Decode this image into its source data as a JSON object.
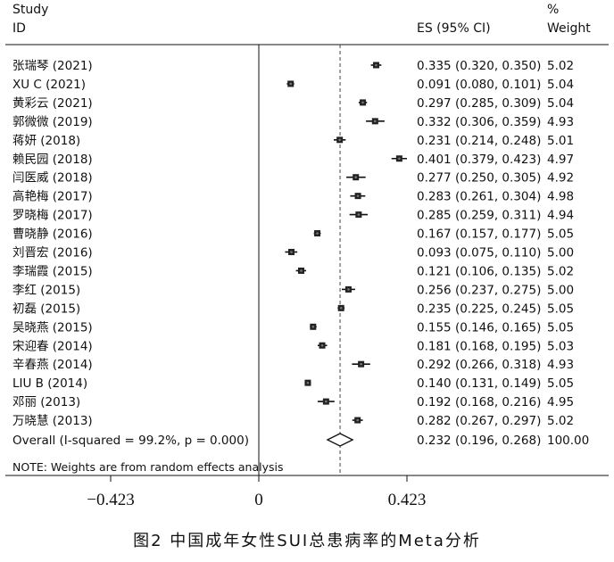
{
  "caption": "图2  中国成年女性SUI总患病率的Meta分析",
  "chart_data": {
    "type": "forest",
    "headers": {
      "study_top": "Study",
      "study_bottom": "ID",
      "es": "ES (95% CI)",
      "weight_top": "%",
      "weight_bottom": "Weight"
    },
    "studies": [
      {
        "label": "张瑞琴 (2021)",
        "es": 0.335,
        "lo": 0.32,
        "hi": 0.35,
        "ci_text": "0.335 (0.320, 0.350)",
        "weight": "5.02"
      },
      {
        "label": "XU C (2021)",
        "es": 0.091,
        "lo": 0.08,
        "hi": 0.101,
        "ci_text": "0.091 (0.080, 0.101)",
        "weight": "5.04"
      },
      {
        "label": "黄彩云 (2021)",
        "es": 0.297,
        "lo": 0.285,
        "hi": 0.309,
        "ci_text": "0.297 (0.285, 0.309)",
        "weight": "5.04"
      },
      {
        "label": "郭微微 (2019)",
        "es": 0.332,
        "lo": 0.306,
        "hi": 0.359,
        "ci_text": "0.332 (0.306, 0.359)",
        "weight": "4.93"
      },
      {
        "label": "蒋妍 (2018)",
        "es": 0.231,
        "lo": 0.214,
        "hi": 0.248,
        "ci_text": "0.231 (0.214, 0.248)",
        "weight": "5.01"
      },
      {
        "label": "赖民园 (2018)",
        "es": 0.401,
        "lo": 0.379,
        "hi": 0.423,
        "ci_text": "0.401 (0.379, 0.423)",
        "weight": "4.97"
      },
      {
        "label": "闫医威 (2018)",
        "es": 0.277,
        "lo": 0.25,
        "hi": 0.305,
        "ci_text": "0.277 (0.250, 0.305)",
        "weight": "4.92"
      },
      {
        "label": "高艳梅 (2017)",
        "es": 0.283,
        "lo": 0.261,
        "hi": 0.304,
        "ci_text": "0.283 (0.261, 0.304)",
        "weight": "4.98"
      },
      {
        "label": "罗晓梅 (2017)",
        "es": 0.285,
        "lo": 0.259,
        "hi": 0.311,
        "ci_text": "0.285 (0.259, 0.311)",
        "weight": "4.94"
      },
      {
        "label": "曹晓静 (2016)",
        "es": 0.167,
        "lo": 0.157,
        "hi": 0.177,
        "ci_text": "0.167 (0.157, 0.177)",
        "weight": "5.05"
      },
      {
        "label": "刘晋宏 (2016)",
        "es": 0.093,
        "lo": 0.075,
        "hi": 0.11,
        "ci_text": "0.093 (0.075, 0.110)",
        "weight": "5.00"
      },
      {
        "label": "李瑞霞 (2015)",
        "es": 0.121,
        "lo": 0.106,
        "hi": 0.135,
        "ci_text": "0.121 (0.106, 0.135)",
        "weight": "5.02"
      },
      {
        "label": "李红 (2015)",
        "es": 0.256,
        "lo": 0.237,
        "hi": 0.275,
        "ci_text": "0.256 (0.237, 0.275)",
        "weight": "5.00"
      },
      {
        "label": "初磊 (2015)",
        "es": 0.235,
        "lo": 0.225,
        "hi": 0.245,
        "ci_text": "0.235 (0.225, 0.245)",
        "weight": "5.05"
      },
      {
        "label": "吴晓燕 (2015)",
        "es": 0.155,
        "lo": 0.146,
        "hi": 0.165,
        "ci_text": "0.155 (0.146, 0.165)",
        "weight": "5.05"
      },
      {
        "label": "宋迎春 (2014)",
        "es": 0.181,
        "lo": 0.168,
        "hi": 0.195,
        "ci_text": "0.181 (0.168, 0.195)",
        "weight": "5.03"
      },
      {
        "label": "辛春燕 (2014)",
        "es": 0.292,
        "lo": 0.266,
        "hi": 0.318,
        "ci_text": "0.292 (0.266, 0.318)",
        "weight": "4.93"
      },
      {
        "label": "LIU B (2014)",
        "es": 0.14,
        "lo": 0.131,
        "hi": 0.149,
        "ci_text": "0.140 (0.131, 0.149)",
        "weight": "5.05"
      },
      {
        "label": "邓丽 (2013)",
        "es": 0.192,
        "lo": 0.168,
        "hi": 0.216,
        "ci_text": "0.192 (0.168, 0.216)",
        "weight": "4.95"
      },
      {
        "label": "万晓慧 (2013)",
        "es": 0.282,
        "lo": 0.267,
        "hi": 0.297,
        "ci_text": "0.282 (0.267, 0.297)",
        "weight": "5.02"
      }
    ],
    "overall": {
      "label": "Overall  (I-squared = 99.2%, p = 0.000)",
      "es": 0.232,
      "lo": 0.196,
      "hi": 0.268,
      "ci_text": "0.232 (0.196, 0.268)",
      "weight": "100.00"
    },
    "note": "NOTE: Weights are from random effects analysis",
    "x_ticks": [
      {
        "value": -0.423,
        "label": "−0.423"
      },
      {
        "value": 0,
        "label": "0"
      },
      {
        "value": 0.423,
        "label": "0.423"
      }
    ],
    "xlim": [
      -0.423,
      0.423
    ],
    "null_line": 0,
    "overall_line": 0.232
  }
}
